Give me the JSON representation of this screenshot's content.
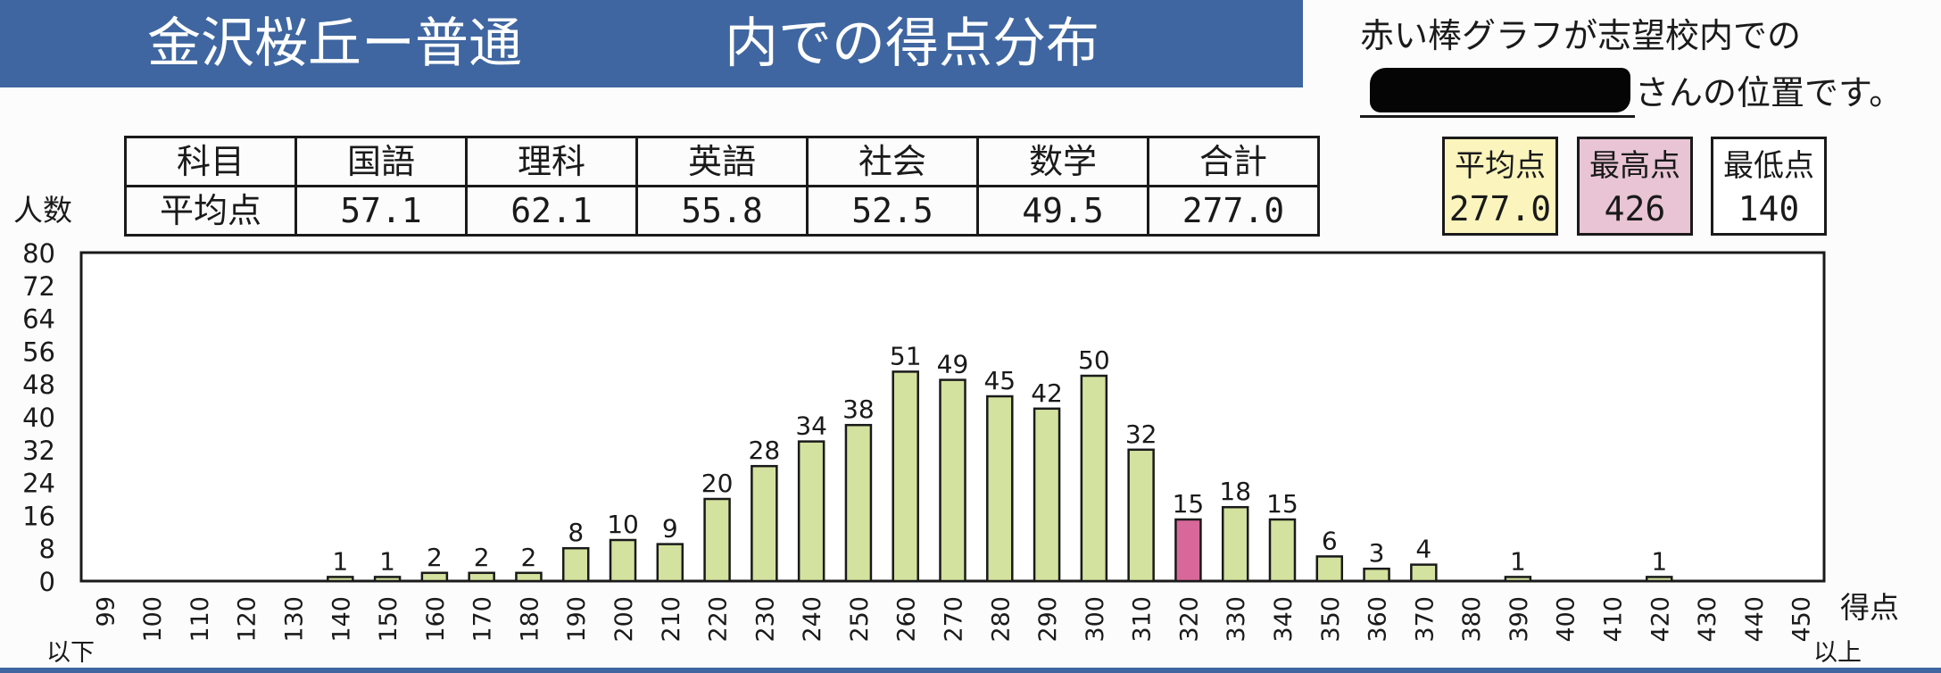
{
  "header": {
    "title_school": "金沢桜丘ー普通",
    "title_suffix": "内での得点分布",
    "note_line1": "赤い棒グラフが志望校内での",
    "note_line2": "さんの位置です。"
  },
  "averages_table": {
    "header_label": "科目",
    "value_label": "平均点",
    "subjects": [
      "国語",
      "理科",
      "英語",
      "社会",
      "数学",
      "合計"
    ],
    "values": [
      "57.1",
      "62.1",
      "55.8",
      "52.5",
      "49.5",
      "277.0"
    ]
  },
  "stats": {
    "average": {
      "label": "平均点",
      "value": "277.0",
      "color": "#fbf5bd"
    },
    "max": {
      "label": "最高点",
      "value": "426",
      "color": "#e8c4d4"
    },
    "min": {
      "label": "最低点",
      "value": "140",
      "color": "#ffffff"
    }
  },
  "chart_data": {
    "type": "bar",
    "ylabel": "人数",
    "xlabel": "得点",
    "x_first_sub": "以下",
    "x_last_sub": "以上",
    "ylim": [
      0,
      80
    ],
    "yticks": [
      0,
      8,
      16,
      24,
      32,
      40,
      48,
      56,
      64,
      72,
      80
    ],
    "categories": [
      "99",
      "100",
      "110",
      "120",
      "130",
      "140",
      "150",
      "160",
      "170",
      "180",
      "190",
      "200",
      "210",
      "220",
      "230",
      "240",
      "250",
      "260",
      "270",
      "280",
      "290",
      "300",
      "310",
      "320",
      "330",
      "340",
      "350",
      "360",
      "370",
      "380",
      "390",
      "400",
      "410",
      "420",
      "430",
      "440",
      "450"
    ],
    "values": [
      0,
      0,
      0,
      0,
      0,
      1,
      1,
      2,
      2,
      2,
      8,
      10,
      9,
      20,
      28,
      34,
      38,
      51,
      49,
      45,
      42,
      50,
      32,
      15,
      18,
      15,
      6,
      3,
      4,
      0,
      1,
      0,
      0,
      1,
      0,
      0,
      0
    ],
    "highlight_category": "320",
    "bar_color": "#d3e29e",
    "highlight_color": "#d9689a",
    "grid": false
  }
}
